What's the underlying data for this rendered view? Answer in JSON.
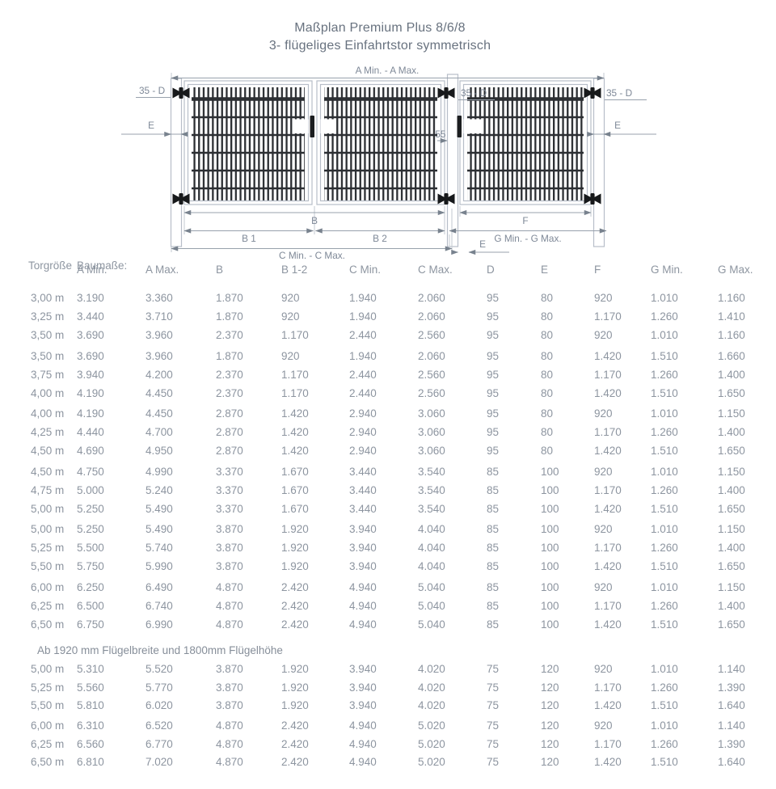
{
  "title": {
    "line1": "Maßplan Premium Plus 8/6/8",
    "line2": "3- flügeliges Einfahrtstor symmetrisch"
  },
  "diagram": {
    "labels": {
      "a_span": "A Min. - A Max.",
      "d_left": "35 - D",
      "d_mid": "35 - D",
      "d_right": "35 - D",
      "e_left": "E",
      "e_right": "E",
      "e_bottom": "E",
      "post_gap": "55",
      "b": "B",
      "b1": "B 1",
      "b2": "B 2",
      "c_span": "C Min. - C Max.",
      "f": "F",
      "g_span": "G Min. - G Max."
    }
  },
  "table": {
    "col1_header": "Torgröße",
    "group_header": "Baumaße:",
    "columns": [
      "A Min.",
      "A Max.",
      "B",
      "B 1-2",
      "C Min.",
      "C Max.",
      "D",
      "E",
      "F",
      "G Min.",
      "G Max."
    ],
    "rows": [
      {
        "size": "3,00 m",
        "values": [
          "3.190",
          "3.360",
          "1.870",
          "920",
          "1.940",
          "2.060",
          "95",
          "80",
          "920",
          "1.010",
          "1.160"
        ]
      },
      {
        "size": "3,25 m",
        "values": [
          "3.440",
          "3.710",
          "1.870",
          "920",
          "1.940",
          "2.060",
          "95",
          "80",
          "1.170",
          "1.260",
          "1.410"
        ]
      },
      {
        "size": "3,50 m",
        "values": [
          "3.690",
          "3.960",
          "2.370",
          "1.170",
          "2.440",
          "2.560",
          "95",
          "80",
          "920",
          "1.010",
          "1.160"
        ]
      },
      {
        "size": "3,50 m",
        "values": [
          "3.690",
          "3.960",
          "1.870",
          "920",
          "1.940",
          "2.060",
          "95",
          "80",
          "1.420",
          "1.510",
          "1.660"
        ]
      },
      {
        "size": "3,75 m",
        "values": [
          "3.940",
          "4.200",
          "2.370",
          "1.170",
          "2.440",
          "2.560",
          "95",
          "80",
          "1.170",
          "1.260",
          "1.400"
        ]
      },
      {
        "size": "4,00 m",
        "values": [
          "4.190",
          "4.450",
          "2.370",
          "1.170",
          "2.440",
          "2.560",
          "95",
          "80",
          "1.420",
          "1.510",
          "1.650"
        ]
      },
      {
        "size": "4,00 m",
        "values": [
          "4.190",
          "4.450",
          "2.870",
          "1.420",
          "2.940",
          "3.060",
          "95",
          "80",
          "920",
          "1.010",
          "1.150"
        ]
      },
      {
        "size": "4,25 m",
        "values": [
          "4.440",
          "4.700",
          "2.870",
          "1.420",
          "2.940",
          "3.060",
          "95",
          "80",
          "1.170",
          "1.260",
          "1.400"
        ]
      },
      {
        "size": "4,50 m",
        "values": [
          "4.690",
          "4.950",
          "2.870",
          "1.420",
          "2.940",
          "3.060",
          "95",
          "80",
          "1.420",
          "1.510",
          "1.650"
        ]
      },
      {
        "size": "4,50 m",
        "values": [
          "4.750",
          "4.990",
          "3.370",
          "1.670",
          "3.440",
          "3.540",
          "85",
          "100",
          "920",
          "1.010",
          "1.150"
        ]
      },
      {
        "size": "4,75 m",
        "values": [
          "5.000",
          "5.240",
          "3.370",
          "1.670",
          "3.440",
          "3.540",
          "85",
          "100",
          "1.170",
          "1.260",
          "1.400"
        ]
      },
      {
        "size": "5,00 m",
        "values": [
          "5.250",
          "5.490",
          "3.370",
          "1.670",
          "3.440",
          "3.540",
          "85",
          "100",
          "1.420",
          "1.510",
          "1.650"
        ]
      },
      {
        "size": "5,00 m",
        "values": [
          "5.250",
          "5.490",
          "3.870",
          "1.920",
          "3.940",
          "4.040",
          "85",
          "100",
          "920",
          "1.010",
          "1.150"
        ]
      },
      {
        "size": "5,25 m",
        "values": [
          "5.500",
          "5.740",
          "3.870",
          "1.920",
          "3.940",
          "4.040",
          "85",
          "100",
          "1.170",
          "1.260",
          "1.400"
        ]
      },
      {
        "size": "5,50 m",
        "values": [
          "5.750",
          "5.990",
          "3.870",
          "1.920",
          "3.940",
          "4.040",
          "85",
          "100",
          "1.420",
          "1.510",
          "1.650"
        ]
      },
      {
        "size": "6,00 m",
        "values": [
          "6.250",
          "6.490",
          "4.870",
          "2.420",
          "4.940",
          "5.040",
          "85",
          "100",
          "920",
          "1.010",
          "1.150"
        ]
      },
      {
        "size": "6,25 m",
        "values": [
          "6.500",
          "6.740",
          "4.870",
          "2.420",
          "4.940",
          "5.040",
          "85",
          "100",
          "1.170",
          "1.260",
          "1.400"
        ]
      },
      {
        "size": "6,50 m",
        "values": [
          "6.750",
          "6.990",
          "4.870",
          "2.420",
          "4.940",
          "5.040",
          "85",
          "100",
          "1.420",
          "1.510",
          "1.650"
        ]
      }
    ],
    "note": "Ab 1920 mm Flügelbreite und 1800mm Flügelhöhe",
    "rows2": [
      {
        "size": "5,00 m",
        "values": [
          "5.310",
          "5.520",
          "3.870",
          "1.920",
          "3.940",
          "4.020",
          "75",
          "120",
          "920",
          "1.010",
          "1.140"
        ]
      },
      {
        "size": "5,25 m",
        "values": [
          "5.560",
          "5.770",
          "3.870",
          "1.920",
          "3.940",
          "4.020",
          "75",
          "120",
          "1.170",
          "1.260",
          "1.390"
        ]
      },
      {
        "size": "5,50 m",
        "values": [
          "5.810",
          "6.020",
          "3.870",
          "1.920",
          "3.940",
          "4.020",
          "75",
          "120",
          "1.420",
          "1.510",
          "1.640"
        ]
      },
      {
        "size": "6,00 m",
        "values": [
          "6.310",
          "6.520",
          "4.870",
          "2.420",
          "4.940",
          "5.020",
          "75",
          "120",
          "920",
          "1.010",
          "1.140"
        ]
      },
      {
        "size": "6,25 m",
        "values": [
          "6.560",
          "6.770",
          "4.870",
          "2.420",
          "4.940",
          "5.020",
          "75",
          "120",
          "1.170",
          "1.260",
          "1.390"
        ]
      },
      {
        "size": "6,50 m",
        "values": [
          "6.810",
          "7.020",
          "4.870",
          "2.420",
          "4.940",
          "5.020",
          "75",
          "120",
          "1.420",
          "1.510",
          "1.640"
        ]
      }
    ]
  },
  "colors": {
    "background": "#ffffff",
    "title_text": "#68727f",
    "table_text": "#8d95a0",
    "diagram_line": "#b7bec8",
    "dimension_line": "#98a1ac",
    "diagram_label": "#7e8897",
    "grid_bar": "#2c2f33",
    "hinge": "#17191b"
  }
}
